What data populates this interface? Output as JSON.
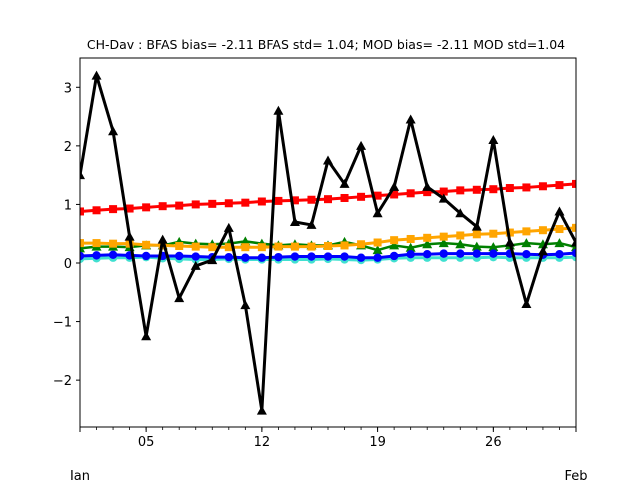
{
  "chart_data": {
    "type": "line",
    "title": "CH-Dav   : BFAS bias= -2.11 BFAS std= 1.04; MOD bias= -2.11 MOD std=1.04",
    "xlabel": "",
    "ylabel": "",
    "x_days": [
      1,
      2,
      3,
      4,
      5,
      6,
      7,
      8,
      9,
      10,
      11,
      12,
      13,
      14,
      15,
      16,
      17,
      18,
      19,
      20,
      21,
      22,
      23,
      24,
      25,
      26,
      27,
      28,
      29,
      30,
      31
    ],
    "xlim": [
      1,
      31
    ],
    "ylim": [
      -2.8,
      3.5
    ],
    "x_ticks": [
      {
        "day": 5,
        "label": "05"
      },
      {
        "day": 12,
        "label": "12"
      },
      {
        "day": 19,
        "label": "19"
      },
      {
        "day": 26,
        "label": "26"
      }
    ],
    "x_month_labels": [
      {
        "day": 1,
        "label": "Jan"
      },
      {
        "day": 31,
        "label": "Feb"
      }
    ],
    "y_ticks": [
      {
        "value": -2,
        "label": "−2"
      },
      {
        "value": -1,
        "label": "−1"
      },
      {
        "value": 0,
        "label": "0"
      },
      {
        "value": 1,
        "label": "1"
      },
      {
        "value": 2,
        "label": "2"
      },
      {
        "value": 3,
        "label": "3"
      }
    ],
    "grid": false,
    "series": [
      {
        "color": "#40e0d0",
        "marker": "circle",
        "line_width": 3,
        "values": [
          0.07,
          0.08,
          0.09,
          0.09,
          0.1,
          0.08,
          0.07,
          0.06,
          0.06,
          0.07,
          0.06,
          0.06,
          0.06,
          0.06,
          0.06,
          0.07,
          0.06,
          0.05,
          0.06,
          0.08,
          0.09,
          0.09,
          0.09,
          0.09,
          0.09,
          0.1,
          0.09,
          0.09,
          0.09,
          0.09,
          0.1
        ]
      },
      {
        "color": "#008000",
        "marker": "triangle",
        "line_width": 2.5,
        "values": [
          0.25,
          0.28,
          0.28,
          0.27,
          0.3,
          0.3,
          0.36,
          0.33,
          0.32,
          0.33,
          0.37,
          0.33,
          0.3,
          0.32,
          0.3,
          0.3,
          0.36,
          0.3,
          0.22,
          0.3,
          0.26,
          0.32,
          0.34,
          0.32,
          0.28,
          0.27,
          0.3,
          0.34,
          0.32,
          0.34,
          0.27
        ]
      },
      {
        "color": "#ffa500",
        "marker": "square",
        "line_width": 3,
        "values": [
          0.34,
          0.34,
          0.33,
          0.33,
          0.31,
          0.3,
          0.29,
          0.28,
          0.27,
          0.27,
          0.27,
          0.27,
          0.28,
          0.28,
          0.28,
          0.29,
          0.3,
          0.32,
          0.35,
          0.39,
          0.41,
          0.43,
          0.45,
          0.47,
          0.49,
          0.5,
          0.52,
          0.54,
          0.56,
          0.58,
          0.6
        ]
      },
      {
        "color": "#ff0000",
        "marker": "square",
        "line_width": 3,
        "values": [
          0.88,
          0.9,
          0.92,
          0.93,
          0.95,
          0.97,
          0.98,
          1.0,
          1.01,
          1.02,
          1.03,
          1.05,
          1.06,
          1.07,
          1.08,
          1.09,
          1.11,
          1.13,
          1.15,
          1.17,
          1.19,
          1.21,
          1.22,
          1.24,
          1.25,
          1.26,
          1.28,
          1.29,
          1.31,
          1.33,
          1.35
        ]
      },
      {
        "color": "#0000ff",
        "marker": "circle",
        "line_width": 3,
        "values": [
          0.12,
          0.13,
          0.14,
          0.13,
          0.12,
          0.12,
          0.12,
          0.11,
          0.1,
          0.1,
          0.09,
          0.09,
          0.1,
          0.11,
          0.11,
          0.11,
          0.11,
          0.09,
          0.09,
          0.12,
          0.15,
          0.15,
          0.16,
          0.16,
          0.16,
          0.16,
          0.16,
          0.15,
          0.14,
          0.15,
          0.17
        ]
      },
      {
        "color": "#000000",
        "marker": "triangle",
        "line_width": 3,
        "values": [
          1.5,
          3.2,
          2.25,
          0.45,
          -1.25,
          0.4,
          -0.6,
          -0.05,
          0.05,
          0.6,
          -0.72,
          -2.52,
          2.6,
          0.7,
          0.65,
          1.75,
          1.35,
          2.0,
          0.85,
          1.3,
          2.45,
          1.3,
          1.1,
          0.85,
          0.62,
          2.1,
          0.35,
          -0.7,
          0.2,
          0.88,
          0.35
        ]
      }
    ]
  }
}
